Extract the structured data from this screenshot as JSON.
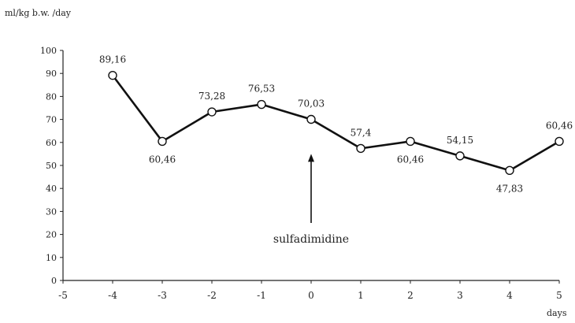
{
  "chart_data": {
    "type": "line",
    "title": "",
    "ylabel": "ml/kg b.w. /day",
    "xlabel": "days",
    "xlim": [
      -5,
      5
    ],
    "ylim": [
      0,
      100
    ],
    "xticks": [
      -5,
      -4,
      -3,
      -2,
      -1,
      0,
      1,
      2,
      3,
      4,
      5
    ],
    "xtick_labels": [
      "-5",
      "-4",
      "-3",
      "-2",
      "-1",
      "0",
      "1",
      "2",
      "3",
      "4",
      "5"
    ],
    "yticks": [
      0,
      10,
      20,
      30,
      40,
      50,
      60,
      70,
      80,
      90,
      100
    ],
    "ytick_labels": [
      "0",
      "10",
      "20",
      "30",
      "40",
      "50",
      "60",
      "70",
      "80",
      "90",
      "100"
    ],
    "grid": false,
    "series": [
      {
        "x": [
          -4,
          -3,
          -2,
          -1,
          0,
          1,
          2,
          3,
          4,
          5
        ],
        "values": [
          89.16,
          60.46,
          73.28,
          76.53,
          70.03,
          57.4,
          60.46,
          54.15,
          47.83,
          60.46
        ],
        "labels": [
          "89,16",
          "60,46",
          "73,28",
          "76,53",
          "70,03",
          "57,4",
          "60,46",
          "54,15",
          "47,83",
          "60,46"
        ],
        "label_pos": [
          "above",
          "below",
          "above",
          "above",
          "above",
          "above",
          "below",
          "above",
          "below",
          "above"
        ],
        "marker": "open-circle",
        "color": "#111111"
      }
    ],
    "annotations": [
      {
        "text": "sulfadimidine",
        "x": 0,
        "y_from": 25,
        "y_to": 55,
        "type": "arrow-up"
      }
    ]
  }
}
